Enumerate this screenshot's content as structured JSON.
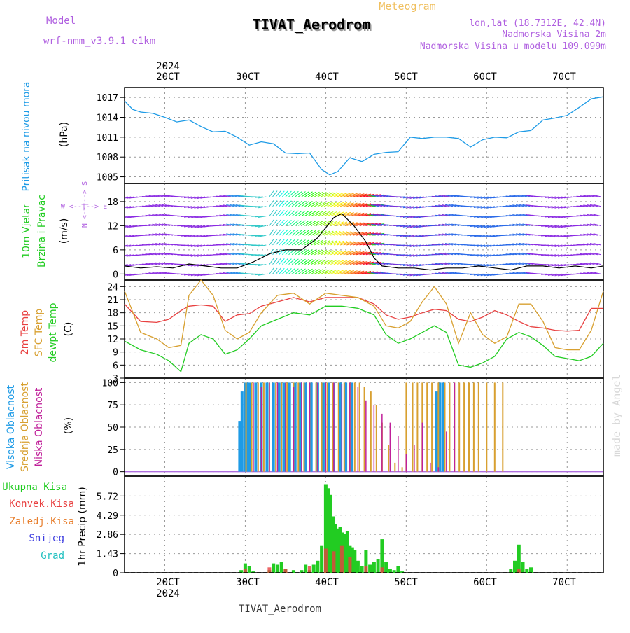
{
  "header": {
    "model_label": "Model",
    "model_name": "wrf-nmm_v3.9.1  e1km",
    "meteogram_label": "Meteogram",
    "station_title": "TIVAT_Aerodrom",
    "lonlat": "lon,lat (18.7312E, 42.4N)",
    "elevation": "Nadmorska Visina 2m",
    "model_elevation": "Nadmorska Visina u modelu 109.099m",
    "watermark": "made by Angel",
    "footer_station": "TIVAT_Aerodrom"
  },
  "time_axis": {
    "year": "2024",
    "ticks": [
      "20CT",
      "30CT",
      "40CT",
      "50CT",
      "60CT",
      "70CT"
    ],
    "tick_positions_days": [
      2,
      3,
      4,
      5,
      6,
      7
    ]
  },
  "colors": {
    "pressure": "#1e9be6",
    "wind_speed": "#000000",
    "temp2m": "#e84040",
    "sfc_temp": "#d8a030",
    "dewpt": "#22cc22",
    "high_cloud": "#1e9be6",
    "mid_cloud": "#d8a030",
    "low_cloud": "#c0209a",
    "precip_total": "#22cc22",
    "precip_conv": "#e84040",
    "precip_strat": "#e88030",
    "snow": "#4040e0",
    "hail": "#20c0c0"
  },
  "chart_data": [
    {
      "type": "line",
      "panel": "pressure",
      "ylabel_side": "Pritisak na nivou mora",
      "ylabel": "(hPa)",
      "ylim": [
        1004,
        1018.5
      ],
      "yticks": [
        1005,
        1008,
        1011,
        1014,
        1017
      ],
      "x": [
        1.5,
        1.6,
        1.7,
        1.85,
        2.0,
        2.15,
        2.3,
        2.45,
        2.6,
        2.75,
        2.9,
        3.05,
        3.2,
        3.35,
        3.5,
        3.65,
        3.8,
        3.95,
        4.05,
        4.15,
        4.3,
        4.45,
        4.6,
        4.75,
        4.9,
        5.05,
        5.2,
        5.35,
        5.5,
        5.65,
        5.8,
        5.95,
        6.1,
        6.25,
        6.4,
        6.55,
        6.7,
        6.85,
        7.0,
        7.15,
        7.3,
        7.45
      ],
      "series": [
        {
          "values": [
            1016.5,
            1015.2,
            1014.8,
            1014.6,
            1014.0,
            1013.3,
            1013.6,
            1012.6,
            1011.8,
            1011.9,
            1011.0,
            1009.8,
            1010.3,
            1010.0,
            1008.6,
            1008.5,
            1008.6,
            1006.1,
            1005.3,
            1005.8,
            1007.9,
            1007.3,
            1008.4,
            1008.7,
            1008.8,
            1011.0,
            1010.8,
            1011.0,
            1011.0,
            1010.8,
            1009.5,
            1010.6,
            1011.0,
            1010.9,
            1011.8,
            1012.0,
            1013.6,
            1013.9,
            1014.3,
            1015.5,
            1016.8,
            1017.1
          ]
        }
      ],
      "grid": true
    },
    {
      "type": "line",
      "panel": "wind",
      "ylabel_side": "10m Vjetar Brzina i Pravac",
      "ylabel": "(m/s)",
      "compass_label": "W <--|--> E",
      "compass_vertical": "N <--|--> S",
      "ylim": [
        -1.5,
        22.5
      ],
      "yticks": [
        0,
        6,
        12,
        18
      ],
      "x": [
        1.5,
        1.7,
        1.9,
        2.1,
        2.3,
        2.5,
        2.7,
        2.9,
        3.1,
        3.3,
        3.5,
        3.7,
        3.9,
        4.1,
        4.2,
        4.35,
        4.5,
        4.6,
        4.7,
        4.9,
        5.1,
        5.3,
        5.5,
        5.7,
        5.9,
        6.1,
        6.3,
        6.5,
        6.7,
        6.9,
        7.1,
        7.3,
        7.45
      ],
      "series": [
        {
          "name": "speed",
          "values": [
            2.0,
            1.5,
            1.8,
            1.5,
            2.5,
            2.0,
            1.5,
            1.5,
            3.0,
            5.0,
            6.0,
            6.0,
            9.0,
            14.0,
            15.0,
            12.0,
            8.0,
            4.0,
            2.0,
            1.5,
            1.5,
            1.0,
            1.5,
            1.5,
            2.0,
            1.5,
            1.0,
            2.0,
            2.0,
            1.5,
            2.0,
            1.5,
            2.0
          ]
        }
      ],
      "grid": true
    },
    {
      "type": "line",
      "panel": "temperature",
      "ylabel_side": [
        "2m Temp",
        "SFC Temp",
        "dewpt Temp"
      ],
      "ylabel": "(C)",
      "ylim": [
        3,
        25.5
      ],
      "yticks": [
        3,
        6,
        9,
        12,
        15,
        18,
        21,
        24
      ],
      "x": [
        1.5,
        1.7,
        1.9,
        2.05,
        2.2,
        2.3,
        2.45,
        2.6,
        2.75,
        2.9,
        3.05,
        3.2,
        3.4,
        3.6,
        3.8,
        4.0,
        4.2,
        4.4,
        4.6,
        4.75,
        4.9,
        5.05,
        5.2,
        5.35,
        5.5,
        5.65,
        5.8,
        5.95,
        6.1,
        6.25,
        6.4,
        6.55,
        6.7,
        6.85,
        7.0,
        7.15,
        7.3,
        7.45
      ],
      "series": [
        {
          "name": "2m Temp",
          "values": [
            20,
            16,
            15.8,
            16.5,
            18.5,
            19.5,
            19.8,
            19.5,
            16,
            17.5,
            17.8,
            19.5,
            20.5,
            21.5,
            20.5,
            21.5,
            21.5,
            21.5,
            20,
            17.5,
            16.5,
            17,
            18,
            18.8,
            18.5,
            16.5,
            16,
            17,
            18.5,
            17.5,
            16,
            14.8,
            14.5,
            14,
            13.8,
            14,
            19,
            19
          ]
        },
        {
          "name": "SFC Temp",
          "values": [
            23,
            13.5,
            12,
            10,
            10.5,
            22,
            25.5,
            22,
            14,
            12,
            13.5,
            18,
            22,
            22.5,
            20,
            22.5,
            22,
            21.5,
            19.5,
            15,
            14.5,
            16,
            20.5,
            24,
            20,
            11,
            18,
            13,
            11,
            12.5,
            20,
            20,
            16,
            10,
            9.5,
            9.5,
            14,
            23
          ]
        },
        {
          "name": "dewpt Temp",
          "values": [
            11.5,
            9.5,
            8.5,
            7,
            4.5,
            11,
            13,
            12,
            8.5,
            9.5,
            12,
            15,
            16.5,
            18,
            17.5,
            19.5,
            19.5,
            19,
            17.5,
            13,
            11,
            12,
            13.5,
            15,
            13.5,
            6,
            5.5,
            6.5,
            8,
            12,
            13.5,
            12.5,
            10.5,
            8,
            7.5,
            7,
            8,
            11
          ]
        }
      ],
      "grid": true
    },
    {
      "type": "bar",
      "panel": "clouds",
      "ylabel_side": [
        "Visoka Oblacnost",
        "Srednja Oblacnost",
        "Niska Oblacnost"
      ],
      "ylabel": "(%)",
      "ylim": [
        -5,
        105
      ],
      "yticks": [
        0,
        25,
        50,
        75,
        100
      ],
      "series": [
        {
          "name": "Visoka Oblacnost",
          "x": [
            2.93,
            2.96,
            3.0,
            3.03,
            3.06,
            3.13,
            3.2,
            3.27,
            3.35,
            3.42,
            3.48,
            3.55,
            3.62,
            3.68,
            3.75,
            3.82,
            3.9,
            3.97,
            4.04,
            4.1,
            4.18,
            4.25,
            4.32,
            5.38,
            5.42,
            5.46
          ],
          "values": [
            57,
            90,
            100,
            100,
            100,
            100,
            100,
            100,
            100,
            100,
            100,
            100,
            100,
            100,
            100,
            100,
            100,
            100,
            100,
            100,
            100,
            100,
            100,
            90,
            100,
            100
          ]
        },
        {
          "name": "Srednja Oblacnost",
          "x": [
            3.01,
            3.08,
            3.16,
            3.23,
            3.3,
            3.38,
            3.45,
            3.52,
            3.6,
            3.66,
            3.73,
            3.8,
            3.88,
            3.95,
            4.02,
            4.09,
            4.16,
            4.23,
            4.3,
            4.36,
            4.42,
            4.48,
            4.56,
            4.63,
            4.7,
            4.78,
            4.86,
            4.95,
            5.0,
            5.08,
            5.14,
            5.2,
            5.26,
            5.32,
            5.4,
            5.48,
            5.54,
            5.6,
            5.66,
            5.72,
            5.78,
            5.84,
            5.9,
            6.0,
            6.1,
            6.2
          ],
          "values": [
            100,
            100,
            100,
            100,
            100,
            100,
            100,
            100,
            100,
            100,
            100,
            100,
            100,
            100,
            100,
            100,
            100,
            100,
            100,
            100,
            100,
            95,
            90,
            75,
            55,
            30,
            10,
            5,
            100,
            100,
            100,
            100,
            100,
            100,
            100,
            100,
            100,
            100,
            100,
            100,
            100,
            100,
            100,
            100,
            100,
            100
          ]
        },
        {
          "name": "Niska Oblacnost",
          "x": [
            3.1,
            3.2,
            3.3,
            3.4,
            3.5,
            3.6,
            3.7,
            3.8,
            3.9,
            4.0,
            4.1,
            4.2,
            4.3,
            4.4,
            4.5,
            4.6,
            4.7,
            4.8,
            4.9,
            5.0,
            5.1,
            5.2,
            5.3,
            5.4,
            5.5,
            5.6
          ],
          "values": [
            100,
            95,
            100,
            100,
            100,
            95,
            100,
            100,
            100,
            100,
            100,
            98,
            100,
            95,
            80,
            75,
            65,
            55,
            40,
            20,
            30,
            55,
            10,
            5,
            45,
            100
          ]
        }
      ],
      "grid": true
    },
    {
      "type": "bar",
      "panel": "precip",
      "legend": [
        "Ukupna Kisa",
        "Konvek.Kisa",
        "Zaledj.Kisa",
        "Snijeg",
        "Grad"
      ],
      "ylabel": "1hr Precip (mm)",
      "ylim": [
        0,
        7.2
      ],
      "yticks": [
        0,
        1.43,
        2.86,
        4.29,
        5.72
      ],
      "series": [
        {
          "name": "Ukupna Kisa",
          "x": [
            2.95,
            3.0,
            3.05,
            3.1,
            3.3,
            3.35,
            3.4,
            3.45,
            3.5,
            3.6,
            3.7,
            3.75,
            3.8,
            3.85,
            3.9,
            3.95,
            4.0,
            4.03,
            4.06,
            4.09,
            4.12,
            4.15,
            4.18,
            4.21,
            4.24,
            4.27,
            4.3,
            4.33,
            4.36,
            4.4,
            4.45,
            4.5,
            4.55,
            4.6,
            4.65,
            4.7,
            4.75,
            4.8,
            4.85,
            4.9,
            4.95,
            6.3,
            6.35,
            6.4,
            6.45,
            6.5,
            6.55
          ],
          "values": [
            0.2,
            0.7,
            0.5,
            0.1,
            0.2,
            0.7,
            0.6,
            0.8,
            0.3,
            0.2,
            0.2,
            0.6,
            0.2,
            0.6,
            0.9,
            2.0,
            6.6,
            6.3,
            5.8,
            4.2,
            3.6,
            3.3,
            3.4,
            3.0,
            2.9,
            3.1,
            2.0,
            1.9,
            1.7,
            0.9,
            0.5,
            1.7,
            0.6,
            0.8,
            1.0,
            2.5,
            0.8,
            0.3,
            0.2,
            0.5,
            0.1,
            0.3,
            0.9,
            2.1,
            0.8,
            0.3,
            0.4
          ]
        },
        {
          "name": "Konvek.Kisa",
          "x": [
            3.0,
            3.3,
            3.5,
            3.8,
            4.0,
            4.1,
            4.2,
            4.3,
            4.5,
            4.7,
            6.4
          ],
          "values": [
            0.3,
            0.4,
            0.3,
            0.5,
            1.8,
            1.6,
            2.0,
            1.2,
            0.5,
            0.4,
            0.3
          ]
        }
      ],
      "grid": true
    }
  ]
}
